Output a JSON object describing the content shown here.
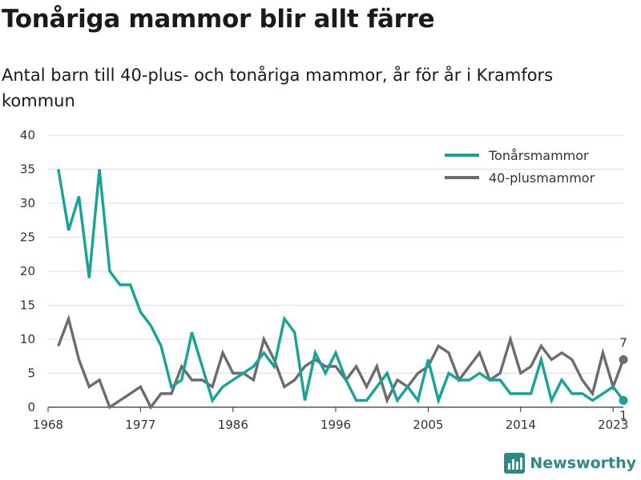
{
  "header": {
    "title": "Tonåriga mammor blir allt färre",
    "subtitle": "Antal barn till 40-plus- och tonåriga mammor, år för år i Kramfors kommun"
  },
  "brand": {
    "name": "Newsworthy",
    "color": "#2e8b84"
  },
  "chart_data": {
    "type": "line",
    "title": "Tonåriga mammor blir allt färre",
    "subtitle": "Antal barn till 40-plus- och tonåriga mammor, år för år i Kramfors kommun",
    "xlabel": "",
    "ylabel": "",
    "xlim": [
      1968,
      2024
    ],
    "ylim": [
      0,
      40
    ],
    "x_ticks": [
      1968,
      1977,
      1986,
      1996,
      2005,
      2014,
      2023
    ],
    "y_ticks": [
      0,
      5,
      10,
      15,
      20,
      25,
      30,
      35,
      40
    ],
    "grid": "horizontal",
    "legend": "top-right",
    "x": [
      1969,
      1970,
      1971,
      1972,
      1973,
      1974,
      1975,
      1976,
      1977,
      1978,
      1979,
      1980,
      1981,
      1982,
      1983,
      1984,
      1985,
      1986,
      1987,
      1988,
      1989,
      1990,
      1991,
      1992,
      1993,
      1994,
      1995,
      1996,
      1997,
      1998,
      1999,
      2000,
      2001,
      2002,
      2003,
      2004,
      2005,
      2006,
      2007,
      2008,
      2009,
      2010,
      2011,
      2012,
      2013,
      2014,
      2015,
      2016,
      2017,
      2018,
      2019,
      2020,
      2021,
      2022,
      2023,
      2024
    ],
    "series": [
      {
        "name": "Tonårsmammor",
        "color": "#17a398",
        "values": [
          35,
          26,
          31,
          19,
          35,
          20,
          18,
          18,
          14,
          12,
          9,
          3,
          4,
          11,
          6,
          1,
          3,
          4,
          5,
          6,
          8,
          6,
          13,
          11,
          1,
          8,
          5,
          8,
          4,
          1,
          1,
          3,
          5,
          1,
          3,
          1,
          7,
          1,
          5,
          4,
          4,
          5,
          4,
          4,
          2,
          2,
          2,
          7,
          1,
          4,
          2,
          2,
          1,
          2,
          3,
          1
        ],
        "end_label": "1"
      },
      {
        "name": "40-plusmammor",
        "color": "#6b6b70",
        "values": [
          9,
          13,
          7,
          3,
          4,
          0,
          1,
          2,
          3,
          0,
          2,
          2,
          6,
          4,
          4,
          3,
          8,
          5,
          5,
          4,
          10,
          7,
          3,
          4,
          6,
          7,
          6,
          6,
          4,
          6,
          3,
          6,
          1,
          4,
          3,
          5,
          6,
          9,
          8,
          4,
          6,
          8,
          4,
          5,
          10,
          5,
          6,
          9,
          7,
          8,
          7,
          4,
          2,
          8,
          3,
          7
        ],
        "end_label": "7"
      }
    ]
  }
}
